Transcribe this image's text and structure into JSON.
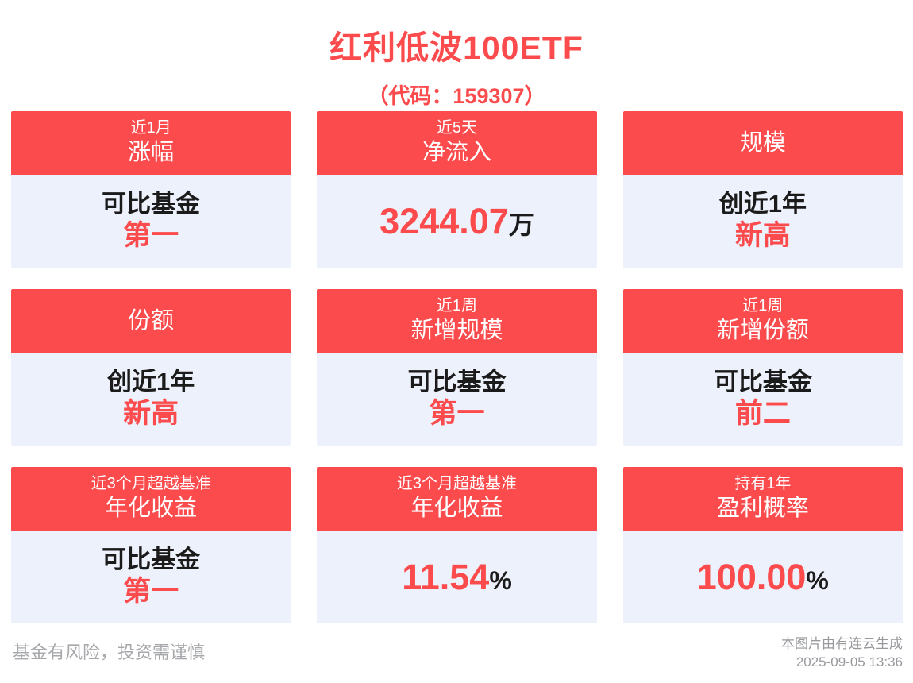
{
  "title": "红利低波100ETF",
  "subtitle": "（代码：159307）",
  "colors": {
    "accent": "#fb4b4d",
    "card_body_bg": "#edf1fb",
    "text_dark": "#1b1b1b",
    "muted": "#a6a8ab"
  },
  "cards": [
    {
      "header_small": "近1月",
      "header_main": "涨幅",
      "line1": "可比基金",
      "highlight": "第一"
    },
    {
      "header_small": "近5天",
      "header_main": "净流入",
      "value": "3244.07",
      "unit": "万"
    },
    {
      "header_small": "",
      "header_main": "规模",
      "line1": "创近1年",
      "highlight": "新高"
    },
    {
      "header_small": "",
      "header_main": "份额",
      "line1": "创近1年",
      "highlight": "新高"
    },
    {
      "header_small": "近1周",
      "header_main": "新增规模",
      "line1": "可比基金",
      "highlight": "第一"
    },
    {
      "header_small": "近1周",
      "header_main": "新增份额",
      "line1": "可比基金",
      "highlight": "前二"
    },
    {
      "header_small": "近3个月超越基准",
      "header_main": "年化收益",
      "line1": "可比基金",
      "highlight": "第一"
    },
    {
      "header_small": "近3个月超越基准",
      "header_main": "年化收益",
      "value": "11.54",
      "unit": "%"
    },
    {
      "header_small": "持有1年",
      "header_main": "盈利概率",
      "value": "100.00",
      "unit": "%"
    }
  ],
  "footer": {
    "disclaimer": "基金有风险，投资需谨慎",
    "source": "本图片由有连云生成",
    "timestamp": "2025-09-05 13:36"
  }
}
